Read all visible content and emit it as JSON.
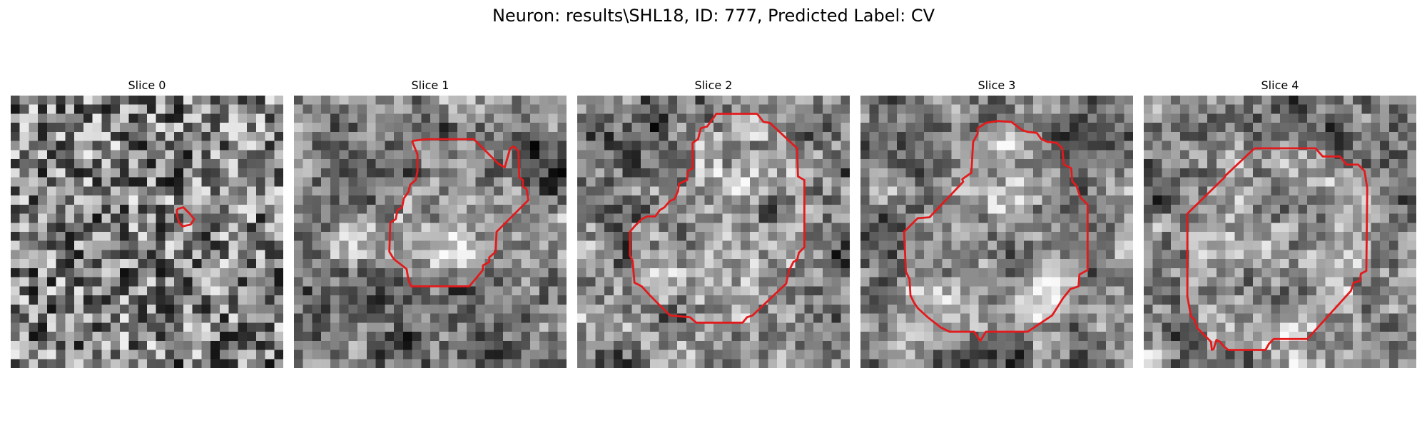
{
  "figure": {
    "title": "Neuron: results\\SHL18, ID: 777, Predicted Label: CV"
  },
  "outline_color": "#e31a1c",
  "grid_cells": 30,
  "panels": [
    {
      "title": "Slice 0",
      "contour": [
        [
          18.3,
          12.5
        ],
        [
          19.0,
          12.3
        ],
        [
          19.7,
          13.0
        ],
        [
          20.2,
          13.6
        ],
        [
          19.8,
          14.2
        ],
        [
          18.9,
          14.4
        ],
        [
          18.5,
          13.9
        ],
        [
          18.3,
          13.1
        ]
      ]
    },
    {
      "title": "Slice 1",
      "contour": [
        [
          13.0,
          5.0
        ],
        [
          14.5,
          4.8
        ],
        [
          19.8,
          4.8
        ],
        [
          22.5,
          7.5
        ],
        [
          23.2,
          7.9
        ],
        [
          23.8,
          5.8
        ],
        [
          24.2,
          5.6
        ],
        [
          24.7,
          6.1
        ],
        [
          24.8,
          9.0
        ],
        [
          25.2,
          9.3
        ],
        [
          25.2,
          10.0
        ],
        [
          25.6,
          10.3
        ],
        [
          25.8,
          11.5
        ],
        [
          22.3,
          15.0
        ],
        [
          22.2,
          17.2
        ],
        [
          21.5,
          17.8
        ],
        [
          21.5,
          18.3
        ],
        [
          20.8,
          18.7
        ],
        [
          20.8,
          19.2
        ],
        [
          19.3,
          21.0
        ],
        [
          12.9,
          21.0
        ],
        [
          12.6,
          20.3
        ],
        [
          12.4,
          19.1
        ],
        [
          11.0,
          18.0
        ],
        [
          10.5,
          17.2
        ],
        [
          10.6,
          14.0
        ],
        [
          11.2,
          13.6
        ],
        [
          11.4,
          12.6
        ],
        [
          11.9,
          12.3
        ],
        [
          12.1,
          11.3
        ],
        [
          12.6,
          10.6
        ],
        [
          12.8,
          9.8
        ],
        [
          13.4,
          9.3
        ],
        [
          13.6,
          8.3
        ],
        [
          13.6,
          6.5
        ]
      ]
    },
    {
      "title": "Slice 2",
      "contour": [
        [
          15.1,
          2.3
        ],
        [
          15.3,
          2.0
        ],
        [
          19.8,
          2.0
        ],
        [
          20.5,
          2.9
        ],
        [
          21.2,
          3.0
        ],
        [
          24.2,
          5.8
        ],
        [
          24.3,
          8.9
        ],
        [
          25.0,
          9.3
        ],
        [
          25.0,
          16.7
        ],
        [
          24.4,
          17.3
        ],
        [
          24.2,
          18.1
        ],
        [
          23.8,
          18.3
        ],
        [
          23.3,
          19.3
        ],
        [
          23.0,
          20.7
        ],
        [
          19.3,
          24.2
        ],
        [
          18.7,
          24.4
        ],
        [
          18.2,
          25.0
        ],
        [
          13.1,
          25.0
        ],
        [
          12.4,
          24.4
        ],
        [
          10.2,
          24.2
        ],
        [
          8.8,
          22.8
        ],
        [
          8.1,
          22.1
        ],
        [
          7.1,
          21.0
        ],
        [
          6.3,
          20.6
        ],
        [
          6.1,
          18.2
        ],
        [
          5.8,
          17.6
        ],
        [
          5.8,
          15.0
        ],
        [
          6.3,
          14.4
        ],
        [
          7.1,
          13.6
        ],
        [
          7.7,
          13.3
        ],
        [
          8.6,
          13.3
        ],
        [
          9.1,
          12.6
        ],
        [
          9.6,
          12.3
        ],
        [
          10.2,
          11.6
        ],
        [
          10.7,
          11.4
        ],
        [
          11.1,
          10.5
        ],
        [
          11.2,
          9.7
        ],
        [
          12.1,
          9.3
        ],
        [
          12.2,
          8.3
        ],
        [
          12.7,
          8.0
        ],
        [
          12.7,
          5.2
        ],
        [
          13.3,
          4.8
        ],
        [
          13.6,
          3.6
        ],
        [
          14.3,
          3.4
        ]
      ]
    },
    {
      "title": "Slice 3",
      "contour": [
        [
          13.8,
          3.0
        ],
        [
          15.1,
          2.8
        ],
        [
          16.6,
          2.9
        ],
        [
          17.8,
          3.8
        ],
        [
          18.4,
          4.0
        ],
        [
          19.4,
          4.1
        ],
        [
          19.9,
          4.8
        ],
        [
          20.6,
          5.1
        ],
        [
          21.6,
          5.2
        ],
        [
          22.2,
          5.8
        ],
        [
          22.4,
          7.6
        ],
        [
          23.2,
          8.0
        ],
        [
          23.3,
          9.4
        ],
        [
          23.8,
          10.0
        ],
        [
          24.2,
          11.2
        ],
        [
          25.0,
          12.0
        ],
        [
          25.0,
          19.2
        ],
        [
          24.1,
          19.7
        ],
        [
          24.0,
          21.0
        ],
        [
          23.1,
          21.3
        ],
        [
          22.3,
          22.3
        ],
        [
          21.1,
          24.2
        ],
        [
          18.4,
          26.0
        ],
        [
          13.8,
          26.0
        ],
        [
          13.2,
          27.0
        ],
        [
          12.5,
          26.0
        ],
        [
          9.8,
          26.0
        ],
        [
          8.8,
          25.5
        ],
        [
          7.4,
          24.4
        ],
        [
          6.3,
          23.4
        ],
        [
          5.9,
          22.8
        ],
        [
          5.5,
          22.0
        ],
        [
          5.4,
          20.2
        ],
        [
          5.0,
          19.4
        ],
        [
          4.8,
          15.0
        ],
        [
          6.3,
          13.5
        ],
        [
          7.6,
          13.4
        ],
        [
          11.3,
          9.5
        ],
        [
          11.2,
          9.2
        ],
        [
          12.2,
          8.5
        ],
        [
          12.4,
          5.1
        ],
        [
          12.9,
          4.2
        ],
        [
          12.9,
          3.6
        ]
      ]
    },
    {
      "title": "Slice 4",
      "contour": [
        [
          12.2,
          5.8
        ],
        [
          18.9,
          5.8
        ],
        [
          19.7,
          6.7
        ],
        [
          21.6,
          6.7
        ],
        [
          22.3,
          7.6
        ],
        [
          23.6,
          7.6
        ],
        [
          24.3,
          8.3
        ],
        [
          24.6,
          10.2
        ],
        [
          24.5,
          19.3
        ],
        [
          23.9,
          19.6
        ],
        [
          23.8,
          20.4
        ],
        [
          23.1,
          20.6
        ],
        [
          22.8,
          21.5
        ],
        [
          18.0,
          26.8
        ],
        [
          14.3,
          26.8
        ],
        [
          13.8,
          27.3
        ],
        [
          13.4,
          28.0
        ],
        [
          9.3,
          28.0
        ],
        [
          8.8,
          27.6
        ],
        [
          8.4,
          27.1
        ],
        [
          8.0,
          26.9
        ],
        [
          7.7,
          27.9
        ],
        [
          7.5,
          28.0
        ],
        [
          7.4,
          27.1
        ],
        [
          5.9,
          25.6
        ],
        [
          5.6,
          24.7
        ],
        [
          5.2,
          24.3
        ],
        [
          4.8,
          22.1
        ],
        [
          4.8,
          13.0
        ],
        [
          8.9,
          9.0
        ],
        [
          9.0,
          8.8
        ]
      ]
    }
  ]
}
